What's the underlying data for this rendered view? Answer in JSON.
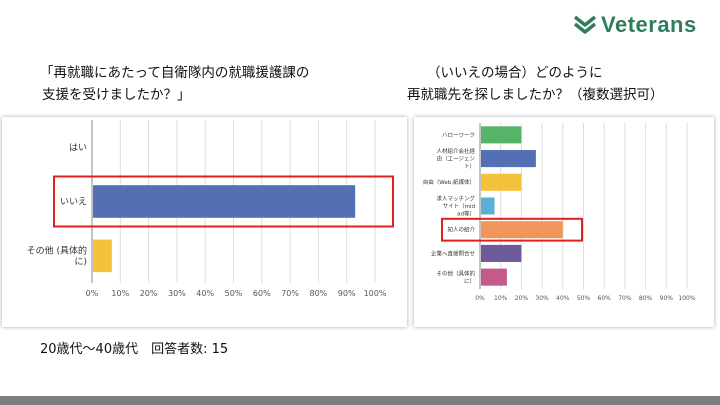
{
  "brand": {
    "name": "Veterans",
    "color": "#2e7d5b",
    "icon": "chevron-logo-icon"
  },
  "left": {
    "question_line1": "「再就職にあたって自衛隊内の就職援護課の",
    "question_line2": "支援を受けましたか？」"
  },
  "right": {
    "question_line1": "（いいえの場合）どのように",
    "question_line2": "再就職先を探しましたか？（複数選択可）"
  },
  "footer": {
    "note": "20歳代〜40歳代　回答者数: 15"
  },
  "chart_data": [
    {
      "type": "bar",
      "orientation": "horizontal",
      "categories": [
        [
          "はい"
        ],
        [
          "いいえ"
        ],
        [
          "その他 (具体的",
          "に)"
        ]
      ],
      "values": [
        0,
        93,
        7
      ],
      "colors": [
        "#5470b4",
        "#5470b4",
        "#f3c13a"
      ],
      "xlim": [
        0,
        100
      ],
      "ticks": [
        "0%",
        "10%",
        "20%",
        "30%",
        "40%",
        "50%",
        "60%",
        "70%",
        "80%",
        "90%",
        "100%"
      ],
      "grid": true,
      "highlight_index": 1,
      "highlight_color": "#e02020"
    },
    {
      "type": "bar",
      "orientation": "horizontal",
      "categories": [
        [
          "ハローワーク"
        ],
        [
          "人材紹介会社経",
          "由（エージェン",
          "ト）"
        ],
        [
          "自由（Web,紙媒体）"
        ],
        [
          "求人マッチング",
          "サイト（mid",
          "ad等）"
        ],
        [
          "知人の紹介"
        ],
        [
          "企業へ直接問合せ"
        ],
        [
          "その他（具体的",
          "に）"
        ]
      ],
      "values": [
        20,
        27,
        20,
        7,
        40,
        20,
        13
      ],
      "colors": [
        "#56b468",
        "#5470b4",
        "#f3c13a",
        "#5ab0d6",
        "#f0965a",
        "#6f5a9c",
        "#c45a8c"
      ],
      "xlim": [
        0,
        100
      ],
      "ticks": [
        "0%",
        "10%",
        "20%",
        "30%",
        "40%",
        "50%",
        "60%",
        "70%",
        "80%",
        "90%",
        "100%"
      ],
      "grid": true,
      "highlight_index": 4,
      "highlight_color": "#e02020"
    }
  ]
}
